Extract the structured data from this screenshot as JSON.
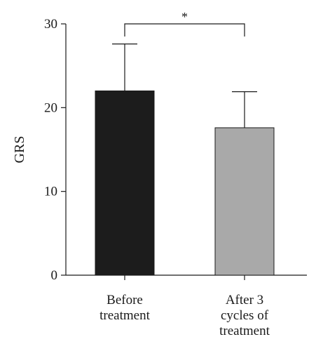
{
  "chart_data": {
    "type": "bar",
    "categories": [
      [
        "Before",
        "treatment"
      ],
      [
        "After 3",
        "cycles of",
        "treatment"
      ]
    ],
    "values": [
      22,
      17.6
    ],
    "error_upper": [
      27.6,
      21.9
    ],
    "colors": [
      "#1c1c1c",
      "#a9a9a9"
    ],
    "xlabel": "",
    "ylabel": "GRS",
    "ylim": [
      0,
      30
    ],
    "yticks": [
      0,
      10,
      20,
      30
    ],
    "significance": {
      "label": "*",
      "between": [
        0,
        1
      ]
    },
    "grid": false
  }
}
